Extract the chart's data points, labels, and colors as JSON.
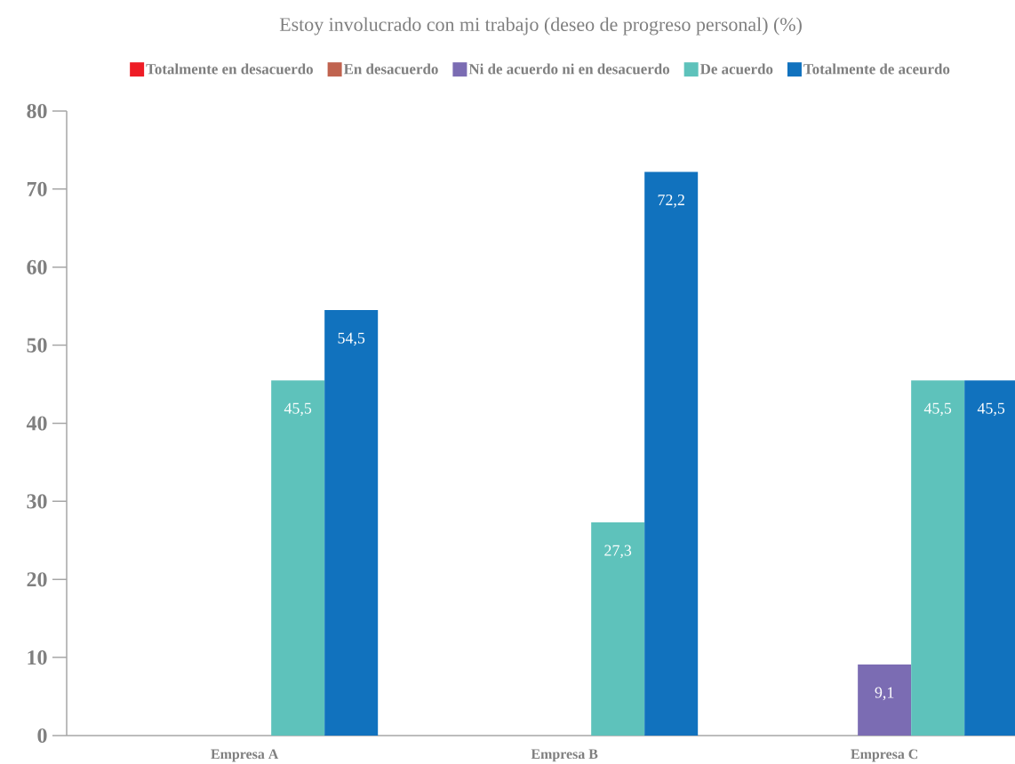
{
  "chart_data": {
    "type": "bar",
    "title": "Estoy involucrado con mi trabajo (deseo de progreso personal) (%)",
    "categories": [
      "Empresa A",
      "Empresa B",
      "Empresa C"
    ],
    "series": [
      {
        "name": "Totalmente en desacuerdo",
        "color": "#ee1c25",
        "values": [
          0,
          0,
          0
        ],
        "value_labels": [
          null,
          null,
          null
        ]
      },
      {
        "name": "En desacuerdo",
        "color": "#c0634f",
        "values": [
          0,
          0,
          0
        ],
        "value_labels": [
          null,
          null,
          null
        ]
      },
      {
        "name": "Ni de acuerdo ni en desacuerdo",
        "color": "#7b6cb3",
        "values": [
          0,
          0,
          9.1
        ],
        "value_labels": [
          null,
          null,
          "9,1"
        ]
      },
      {
        "name": "De acuerdo",
        "color": "#5ec2bb",
        "values": [
          45.5,
          27.3,
          45.5
        ],
        "value_labels": [
          "45,5",
          "27,3",
          "45,5"
        ]
      },
      {
        "name": "Totalmente de aceurdo",
        "color": "#1172be",
        "values": [
          54.5,
          72.2,
          45.5
        ],
        "value_labels": [
          "54,5",
          "72,2",
          "45,5"
        ]
      }
    ],
    "ylim": [
      0,
      80
    ],
    "yticks": [
      0,
      10,
      20,
      30,
      40,
      50,
      60,
      70,
      80
    ],
    "legend": "top"
  }
}
